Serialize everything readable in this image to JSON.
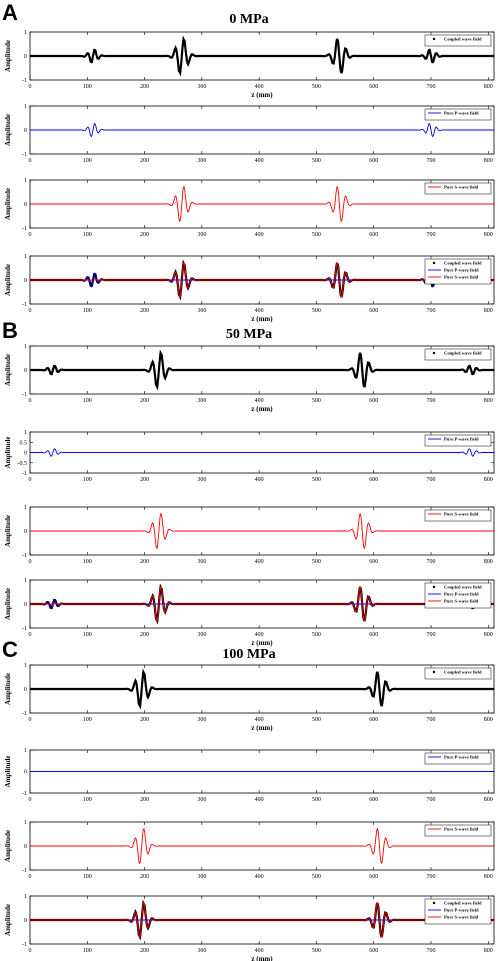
{
  "colors": {
    "coupled": "#000000",
    "p_wave": "#0000ff",
    "s_wave": "#ff0000"
  },
  "chart_data": [
    {
      "panel": "A",
      "title": "0 MPa",
      "type": "line",
      "subplot": 1,
      "series": [
        {
          "name": "Coupled wave field",
          "color": "#000000",
          "style": "dots",
          "pulses": [
            [
              110,
              0.3,
              10,
              1
            ],
            [
              265,
              0.8,
              12,
              1
            ],
            [
              540,
              0.8,
              12,
              -1
            ],
            [
              700,
              0.3,
              10,
              -1
            ]
          ]
        }
      ],
      "xlabel": "z (mm)",
      "ylabel": "Amplitude",
      "xlim": [
        0,
        810
      ],
      "ylim": [
        -1,
        1
      ],
      "xticks": [
        0,
        100,
        200,
        300,
        400,
        500,
        600,
        700,
        800
      ],
      "yticks": [
        -1,
        0,
        1
      ],
      "legend": "top-right"
    },
    {
      "panel": "A",
      "subplot": 2,
      "type": "line",
      "series": [
        {
          "name": "Pure P-wave field",
          "color": "#0000ff",
          "style": "line",
          "pulses": [
            [
              110,
              0.3,
              10,
              1
            ],
            [
              700,
              0.3,
              10,
              -1
            ]
          ]
        }
      ],
      "xlabel": "",
      "ylabel": "Amplitude",
      "xlim": [
        0,
        810
      ],
      "ylim": [
        -1,
        1
      ],
      "xticks": [
        0,
        100,
        200,
        300,
        400,
        500,
        600,
        700,
        800
      ],
      "yticks": [
        -1,
        0,
        1
      ],
      "legend": "top-right"
    },
    {
      "panel": "A",
      "subplot": 3,
      "type": "line",
      "series": [
        {
          "name": "Pure S-wave field",
          "color": "#ff0000",
          "style": "line",
          "pulses": [
            [
              265,
              0.8,
              12,
              1
            ],
            [
              540,
              0.8,
              12,
              -1
            ]
          ]
        }
      ],
      "xlabel": "",
      "ylabel": "Amplitude",
      "xlim": [
        0,
        810
      ],
      "ylim": [
        -1,
        1
      ],
      "xticks": [
        0,
        100,
        200,
        300,
        400,
        500,
        600,
        700,
        800
      ],
      "yticks": [
        -1,
        0,
        1
      ],
      "legend": "top-right"
    },
    {
      "panel": "A",
      "subplot": 4,
      "type": "line",
      "series": [
        {
          "name": "Coupled wave field",
          "color": "#000000",
          "style": "dots",
          "pulses": [
            [
              110,
              0.3,
              10,
              1
            ],
            [
              265,
              0.8,
              12,
              1
            ],
            [
              540,
              0.8,
              12,
              -1
            ],
            [
              700,
              0.3,
              10,
              -1
            ]
          ]
        },
        {
          "name": "Pure P-wave field",
          "color": "#0000ff",
          "style": "line",
          "pulses": [
            [
              110,
              0.3,
              10,
              1
            ],
            [
              700,
              0.3,
              10,
              -1
            ]
          ]
        },
        {
          "name": "Pure S-wave field",
          "color": "#ff0000",
          "style": "line",
          "pulses": [
            [
              265,
              0.8,
              12,
              1
            ],
            [
              540,
              0.8,
              12,
              -1
            ]
          ]
        }
      ],
      "xlabel": "z (mm)",
      "ylabel": "Amplitude",
      "xlim": [
        0,
        810
      ],
      "ylim": [
        -1,
        1
      ],
      "xticks": [
        0,
        100,
        200,
        300,
        400,
        500,
        600,
        700,
        800
      ],
      "yticks": [
        -1,
        0,
        1
      ],
      "legend": "top-right"
    },
    {
      "panel": "B",
      "title": "50 MPa",
      "type": "line",
      "subplot": 1,
      "series": [
        {
          "name": "Coupled wave field",
          "color": "#000000",
          "style": "dots",
          "pulses": [
            [
              40,
              0.2,
              10,
              1
            ],
            [
              225,
              0.8,
              12,
              1
            ],
            [
              580,
              0.8,
              12,
              -1
            ],
            [
              770,
              0.2,
              10,
              -1
            ]
          ]
        }
      ],
      "xlabel": "z (mm)",
      "ylabel": "Amplitude",
      "xlim": [
        0,
        810
      ],
      "ylim": [
        -1,
        1
      ],
      "xticks": [
        0,
        100,
        200,
        300,
        400,
        500,
        600,
        700,
        800
      ],
      "yticks": [
        -1,
        0,
        1
      ],
      "legend": "top-right"
    },
    {
      "panel": "B",
      "subplot": 2,
      "type": "line",
      "series": [
        {
          "name": "Pure P-wave field",
          "color": "#0000ff",
          "style": "line",
          "pulses": [
            [
              40,
              0.2,
              10,
              1
            ],
            [
              770,
              0.2,
              10,
              -1
            ]
          ]
        }
      ],
      "xlabel": "",
      "ylabel": "Amplitude",
      "xlim": [
        0,
        810
      ],
      "ylim": [
        -1,
        1
      ],
      "xticks": [
        0,
        100,
        200,
        300,
        400,
        500,
        600,
        700,
        800
      ],
      "yticks": [
        -1,
        -0.5,
        0,
        0.5,
        1
      ],
      "legend": "top-right"
    },
    {
      "panel": "B",
      "subplot": 3,
      "type": "line",
      "series": [
        {
          "name": "Pure S-wave field",
          "color": "#ff0000",
          "style": "line",
          "pulses": [
            [
              225,
              0.8,
              12,
              1
            ],
            [
              580,
              0.8,
              12,
              -1
            ]
          ]
        }
      ],
      "xlabel": "",
      "ylabel": "Amplitude",
      "xlim": [
        0,
        810
      ],
      "ylim": [
        -1,
        1
      ],
      "xticks": [
        0,
        100,
        200,
        300,
        400,
        500,
        600,
        700,
        800
      ],
      "yticks": [
        -1,
        0,
        1
      ],
      "legend": "top-right"
    },
    {
      "panel": "B",
      "subplot": 4,
      "type": "line",
      "series": [
        {
          "name": "Coupled wave field",
          "color": "#000000",
          "style": "dots",
          "pulses": [
            [
              40,
              0.2,
              10,
              1
            ],
            [
              225,
              0.8,
              12,
              1
            ],
            [
              580,
              0.8,
              12,
              -1
            ],
            [
              770,
              0.2,
              10,
              -1
            ]
          ]
        },
        {
          "name": "Pure P-wave field",
          "color": "#0000ff",
          "style": "line",
          "pulses": [
            [
              40,
              0.2,
              10,
              1
            ],
            [
              770,
              0.2,
              10,
              -1
            ]
          ]
        },
        {
          "name": "Pure S-wave field",
          "color": "#ff0000",
          "style": "line",
          "pulses": [
            [
              225,
              0.8,
              12,
              1
            ],
            [
              580,
              0.8,
              12,
              -1
            ]
          ]
        }
      ],
      "xlabel": "z (mm)",
      "ylabel": "Amplitude",
      "xlim": [
        0,
        810
      ],
      "ylim": [
        -1,
        1
      ],
      "xticks": [
        0,
        100,
        200,
        300,
        400,
        500,
        600,
        700,
        800
      ],
      "yticks": [
        -1,
        0,
        1
      ],
      "legend": "top-right"
    },
    {
      "panel": "C",
      "title": "100 MPa",
      "type": "line",
      "subplot": 1,
      "series": [
        {
          "name": "Coupled wave field",
          "color": "#000000",
          "style": "dots",
          "pulses": [
            [
              195,
              0.8,
              12,
              1
            ],
            [
              610,
              0.8,
              12,
              -1
            ]
          ]
        }
      ],
      "xlabel": "z (mm)",
      "ylabel": "Amplitude",
      "xlim": [
        0,
        810
      ],
      "ylim": [
        -1,
        1
      ],
      "xticks": [
        0,
        100,
        200,
        300,
        400,
        500,
        600,
        700,
        800
      ],
      "yticks": [
        -1,
        0,
        1
      ],
      "legend": "top-right"
    },
    {
      "panel": "C",
      "subplot": 2,
      "type": "line",
      "series": [
        {
          "name": "Pure P-wave field",
          "color": "#0000ff",
          "style": "line",
          "pulses": []
        }
      ],
      "xlabel": "",
      "ylabel": "Amplitude",
      "xlim": [
        0,
        810
      ],
      "ylim": [
        -1,
        1
      ],
      "xticks": [
        0,
        100,
        200,
        300,
        400,
        500,
        600,
        700,
        800
      ],
      "yticks": [
        -1,
        0,
        1
      ],
      "legend": "top-right"
    },
    {
      "panel": "C",
      "subplot": 3,
      "type": "line",
      "series": [
        {
          "name": "Pure S-wave field",
          "color": "#ff0000",
          "style": "line",
          "pulses": [
            [
              195,
              0.8,
              12,
              1
            ],
            [
              610,
              0.8,
              12,
              -1
            ]
          ]
        }
      ],
      "xlabel": "",
      "ylabel": "Amplitude",
      "xlim": [
        0,
        810
      ],
      "ylim": [
        -1,
        1
      ],
      "xticks": [
        0,
        100,
        200,
        300,
        400,
        500,
        600,
        700,
        800
      ],
      "yticks": [
        -1,
        0,
        1
      ],
      "legend": "top-right"
    },
    {
      "panel": "C",
      "subplot": 4,
      "type": "line",
      "series": [
        {
          "name": "Coupled wave field",
          "color": "#000000",
          "style": "dots",
          "pulses": [
            [
              195,
              0.8,
              12,
              1
            ],
            [
              610,
              0.8,
              12,
              -1
            ]
          ]
        },
        {
          "name": "Pure P-wave field",
          "color": "#0000ff",
          "style": "line",
          "pulses": []
        },
        {
          "name": "Pure S-wave field",
          "color": "#ff0000",
          "style": "line",
          "pulses": [
            [
              195,
              0.8,
              12,
              1
            ],
            [
              610,
              0.8,
              12,
              -1
            ]
          ]
        }
      ],
      "xlabel": "z (mm)",
      "ylabel": "Amplitude",
      "xlim": [
        0,
        810
      ],
      "ylim": [
        -1,
        1
      ],
      "xticks": [
        0,
        100,
        200,
        300,
        400,
        500,
        600,
        700,
        800
      ],
      "yticks": [
        -1,
        0,
        1
      ],
      "legend": "top-right"
    }
  ],
  "panels": [
    {
      "letter": "A",
      "title": "0 MPa"
    },
    {
      "letter": "B",
      "title": "50 MPa"
    },
    {
      "letter": "C",
      "title": "100 MPa"
    }
  ]
}
